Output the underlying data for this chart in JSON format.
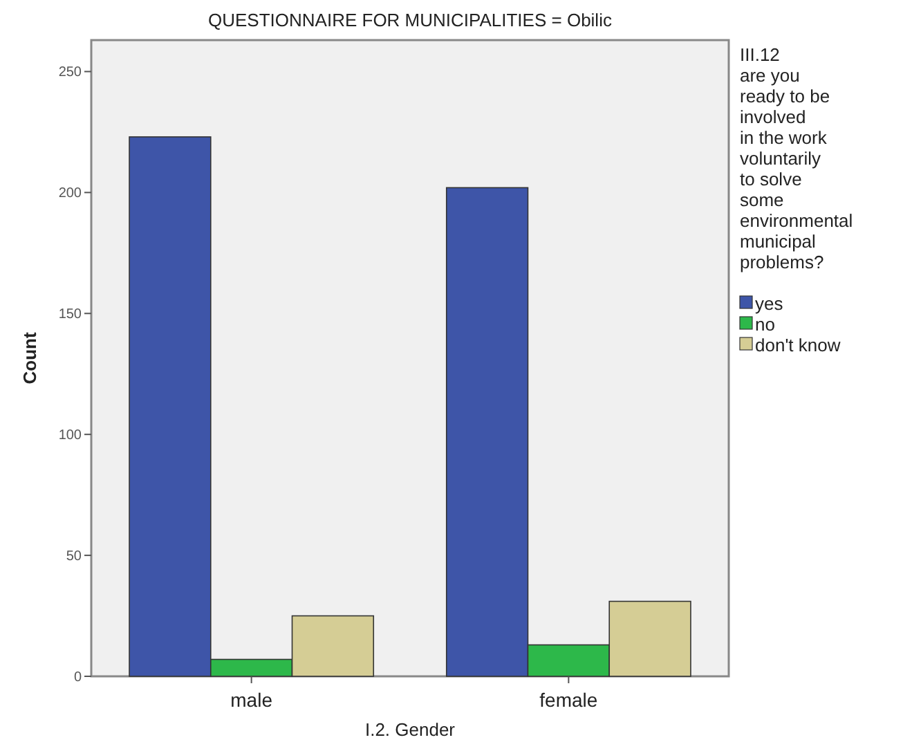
{
  "chart_data": {
    "type": "bar",
    "title": "QUESTIONNAIRE FOR MUNICIPALITIES = Obilic",
    "xlabel": "I.2. Gender",
    "ylabel": "Count",
    "legend_title": "III.12\nare you\nready to be\ninvolved\nin the work\nvoluntarily\nto solve\nsome\nenvironmental\nmunicipal\nproblems?",
    "categories": [
      "male",
      "female"
    ],
    "series": [
      {
        "name": "yes",
        "color": "#3e55a8",
        "values": [
          223,
          202
        ]
      },
      {
        "name": "no",
        "color": "#2db84a",
        "values": [
          7,
          13
        ]
      },
      {
        "name": "don't know",
        "color": "#d5cd95",
        "values": [
          25,
          31
        ]
      }
    ],
    "ylim": [
      0,
      263
    ],
    "yticks": [
      0,
      50,
      100,
      150,
      200,
      250
    ],
    "grid": false,
    "legend": "right"
  }
}
